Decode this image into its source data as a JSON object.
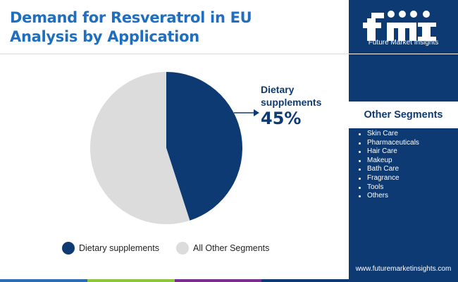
{
  "header": {
    "title_line1": "Demand for Resveratrol in EU",
    "title_line2": "Analysis by Application"
  },
  "brand": {
    "logo_text": "Future Market Insights",
    "website": "www.futuremarketinsights.com"
  },
  "sidebar": {
    "other_segments_title": "Other Segments",
    "items": [
      "Skin Care",
      "Pharmaceuticals",
      "Hair Care",
      "Makeup",
      "Bath Care",
      "Fragrance",
      "Tools",
      "Others"
    ]
  },
  "callout": {
    "label_line1": "Dietary",
    "label_line2": "supplements",
    "value": "45%"
  },
  "colors": {
    "primary": "#0e3a74",
    "secondary": "#dcdcdc",
    "title": "#1f6fc0",
    "bottom_bar": [
      "#2e6db4",
      "#8fc43f",
      "#7a2e8e",
      "#0e3a74"
    ]
  },
  "chart_data": {
    "type": "pie",
    "title": "Demand for Resveratrol in EU Analysis by Application",
    "slices": [
      {
        "label": "Dietary supplements",
        "value": 45,
        "color": "#0e3a74"
      },
      {
        "label": "All Other Segments",
        "value": 55,
        "color": "#dcdcdc"
      }
    ],
    "start_angle": "12 o'clock",
    "direction": "clockwise",
    "legend": {
      "position": "bottom",
      "entries": [
        "Dietary supplements",
        "All Other Segments"
      ]
    },
    "data_labels": [
      {
        "slice": "Dietary supplements",
        "text": "45%"
      }
    ]
  }
}
